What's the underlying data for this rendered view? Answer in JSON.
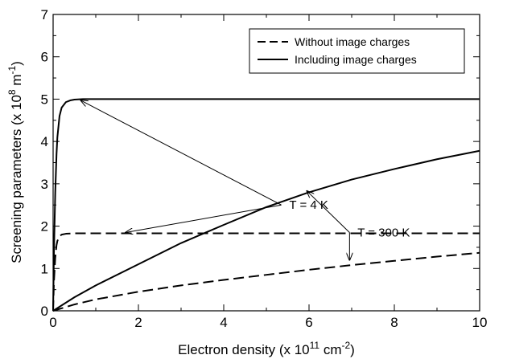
{
  "chart_data": {
    "type": "line",
    "xlabel": {
      "prefix": "Electron density (x 10",
      "exp1": "11",
      "mid": " cm",
      "exp2": "-2",
      "suffix": ")"
    },
    "ylabel": {
      "prefix": "Screening parameters (x 10",
      "exp1": "8",
      "mid": " m",
      "exp2": "-1",
      "suffix": ")"
    },
    "xlim": [
      0,
      10
    ],
    "ylim": [
      0,
      7
    ],
    "xticks": [
      0,
      2,
      4,
      6,
      8,
      10
    ],
    "yticks": [
      0,
      1,
      2,
      3,
      4,
      5,
      6,
      7
    ],
    "grid": false,
    "legend_position": "top-right",
    "legend": [
      {
        "label": "Without image charges",
        "style": "dashed"
      },
      {
        "label": "Including image charges",
        "style": "solid"
      }
    ],
    "series": [
      {
        "name": "Without image charges",
        "temperature": "4 K",
        "style": "dashed",
        "x": [
          0,
          0.02,
          0.05,
          0.08,
          0.1,
          0.15,
          0.2,
          0.3,
          0.5,
          1,
          2,
          4,
          6,
          8,
          10
        ],
        "y": [
          0,
          0.7,
          1.25,
          1.55,
          1.65,
          1.76,
          1.8,
          1.82,
          1.83,
          1.83,
          1.83,
          1.83,
          1.83,
          1.83,
          1.83
        ]
      },
      {
        "name": "Including image charges",
        "temperature": "4 K",
        "style": "solid",
        "x": [
          0,
          0.02,
          0.05,
          0.08,
          0.1,
          0.15,
          0.2,
          0.3,
          0.4,
          0.5,
          0.7,
          1,
          2,
          4,
          6,
          8,
          10
        ],
        "y": [
          0,
          1.4,
          2.8,
          3.7,
          4.1,
          4.6,
          4.8,
          4.93,
          4.97,
          4.99,
          5.0,
          5.0,
          5.0,
          5.0,
          5.0,
          5.0,
          5.0
        ]
      },
      {
        "name": "Without image charges",
        "temperature": "300 K",
        "style": "dashed",
        "x": [
          0,
          0.5,
          1,
          2,
          3,
          4,
          5,
          6,
          7,
          8,
          9,
          10
        ],
        "y": [
          0,
          0.15,
          0.27,
          0.45,
          0.6,
          0.73,
          0.85,
          0.97,
          1.08,
          1.18,
          1.28,
          1.37
        ]
      },
      {
        "name": "Including image charges",
        "temperature": "300 K",
        "style": "solid",
        "x": [
          0,
          0.5,
          1,
          2,
          3,
          4,
          5,
          6,
          7,
          8,
          9,
          10
        ],
        "y": [
          0,
          0.32,
          0.6,
          1.1,
          1.6,
          2.03,
          2.45,
          2.8,
          3.1,
          3.35,
          3.58,
          3.78
        ]
      }
    ],
    "annotations": [
      {
        "text": "T = 4 K",
        "anchor": {
          "x": 5.8,
          "y": 2.5
        },
        "hub": {
          "x": 5.35,
          "y": 2.5
        },
        "arrows_to": [
          {
            "x": 0.65,
            "y": 4.97
          },
          {
            "x": 1.7,
            "y": 1.85
          }
        ]
      },
      {
        "text": "T = 300 K",
        "anchor": {
          "x": 7.4,
          "y": 1.85
        },
        "hub": {
          "x": 6.95,
          "y": 1.85
        },
        "arrows_to": [
          {
            "x": 5.95,
            "y": 2.83
          },
          {
            "x": 6.95,
            "y": 1.2
          }
        ]
      }
    ]
  }
}
